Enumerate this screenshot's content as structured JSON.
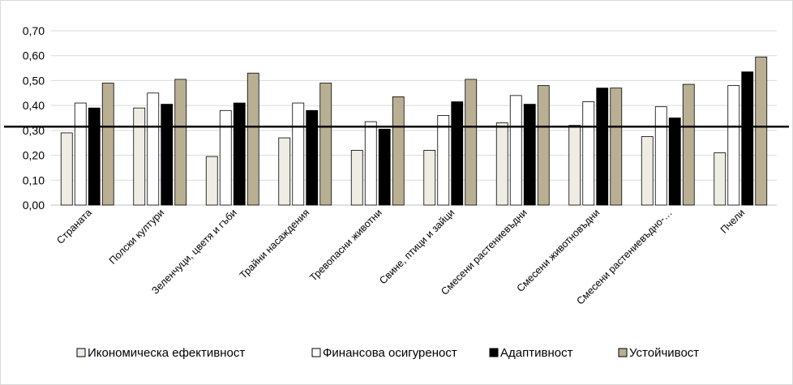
{
  "chart_data": {
    "type": "bar",
    "title": "",
    "xlabel": "",
    "ylabel": "",
    "ylim": [
      0,
      0.7
    ],
    "yticks": [
      "0,00",
      "0,10",
      "0,20",
      "0,30",
      "0,40",
      "0,50",
      "0,60",
      "0,70"
    ],
    "reference_line": 0.315,
    "grid": true,
    "legend_position": "bottom",
    "categories": [
      "Страната",
      "Полски култури",
      "Зеленчуци, цветя и гъби",
      "Трайни насаждения",
      "Тревопасни животни",
      "Свине, птици и зайци",
      "Смесени растениевъдни",
      "Смесени животновъдни",
      "Смесени растениевъдно-…",
      "Пчели"
    ],
    "series": [
      {
        "name": "Икономическа ефективност",
        "color": "#efede3",
        "values": [
          0.29,
          0.39,
          0.195,
          0.27,
          0.22,
          0.22,
          0.33,
          0.32,
          0.275,
          0.21
        ]
      },
      {
        "name": "Финансова осигуреност",
        "color": "#ffffff",
        "values": [
          0.41,
          0.45,
          0.38,
          0.41,
          0.335,
          0.36,
          0.44,
          0.415,
          0.395,
          0.48
        ]
      },
      {
        "name": "Адаптивност",
        "color": "#000000",
        "values": [
          0.39,
          0.405,
          0.41,
          0.38,
          0.305,
          0.415,
          0.405,
          0.47,
          0.35,
          0.535
        ]
      },
      {
        "name": "Устойчивост",
        "color": "#b9af93",
        "values": [
          0.49,
          0.505,
          0.53,
          0.49,
          0.435,
          0.505,
          0.48,
          0.47,
          0.485,
          0.595
        ]
      }
    ]
  }
}
